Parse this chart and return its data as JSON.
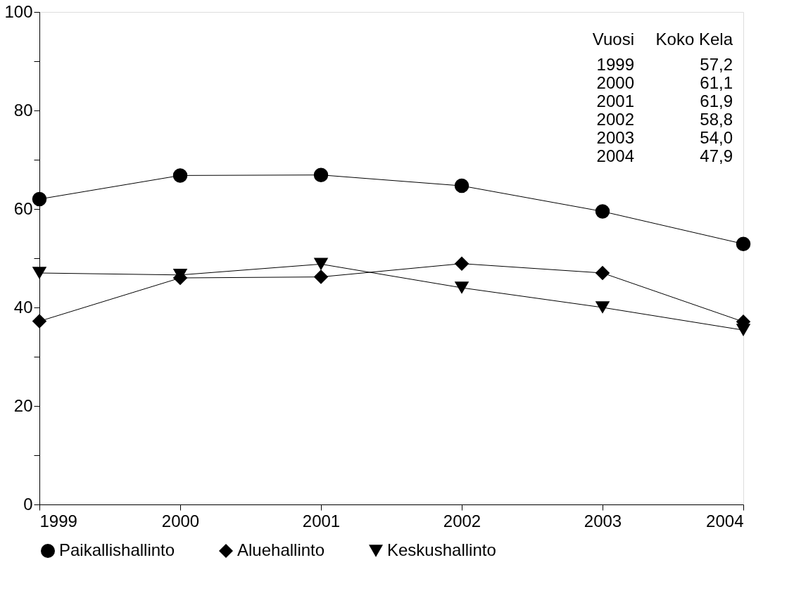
{
  "chart_data": {
    "type": "line",
    "x": [
      1999,
      2000,
      2001,
      2002,
      2003,
      2004
    ],
    "xlim": [
      1999,
      2004
    ],
    "xticks": [
      1999,
      2000,
      2001,
      2002,
      2003,
      2004
    ],
    "ylim": [
      0,
      100
    ],
    "yticks": [
      0,
      {
        "value": 10,
        "label": null
      },
      20,
      {
        "value": 30,
        "label": null
      },
      40,
      {
        "value": 50,
        "label": null
      },
      60,
      {
        "value": 70,
        "label": null
      },
      80,
      {
        "value": 90,
        "label": null
      },
      100
    ],
    "series": [
      {
        "name": "Paikallishallinto",
        "color": "#000000",
        "marker": "circle",
        "values": [
          62.0,
          66.8,
          66.9,
          64.7,
          59.5,
          52.9
        ]
      },
      {
        "name": "Aluehallinto",
        "color": "#000000",
        "marker": "diamond",
        "values": [
          37.2,
          46.0,
          46.2,
          48.9,
          47.0,
          37.1
        ]
      },
      {
        "name": "Keskushallinto",
        "color": "#000000",
        "marker": "triangle",
        "values": [
          47.0,
          46.6,
          48.8,
          44.0,
          40.0,
          35.4
        ]
      }
    ],
    "annotations": [
      "Vuosi",
      "Koko Kela",
      "1999",
      "57,2",
      "2000",
      "61,1",
      "2001",
      "61,9",
      "2002",
      "58,8",
      "2003",
      "54,0",
      "2004",
      "47,9"
    ],
    "line_style": "solid",
    "grid": false,
    "legend": "bottom"
  }
}
